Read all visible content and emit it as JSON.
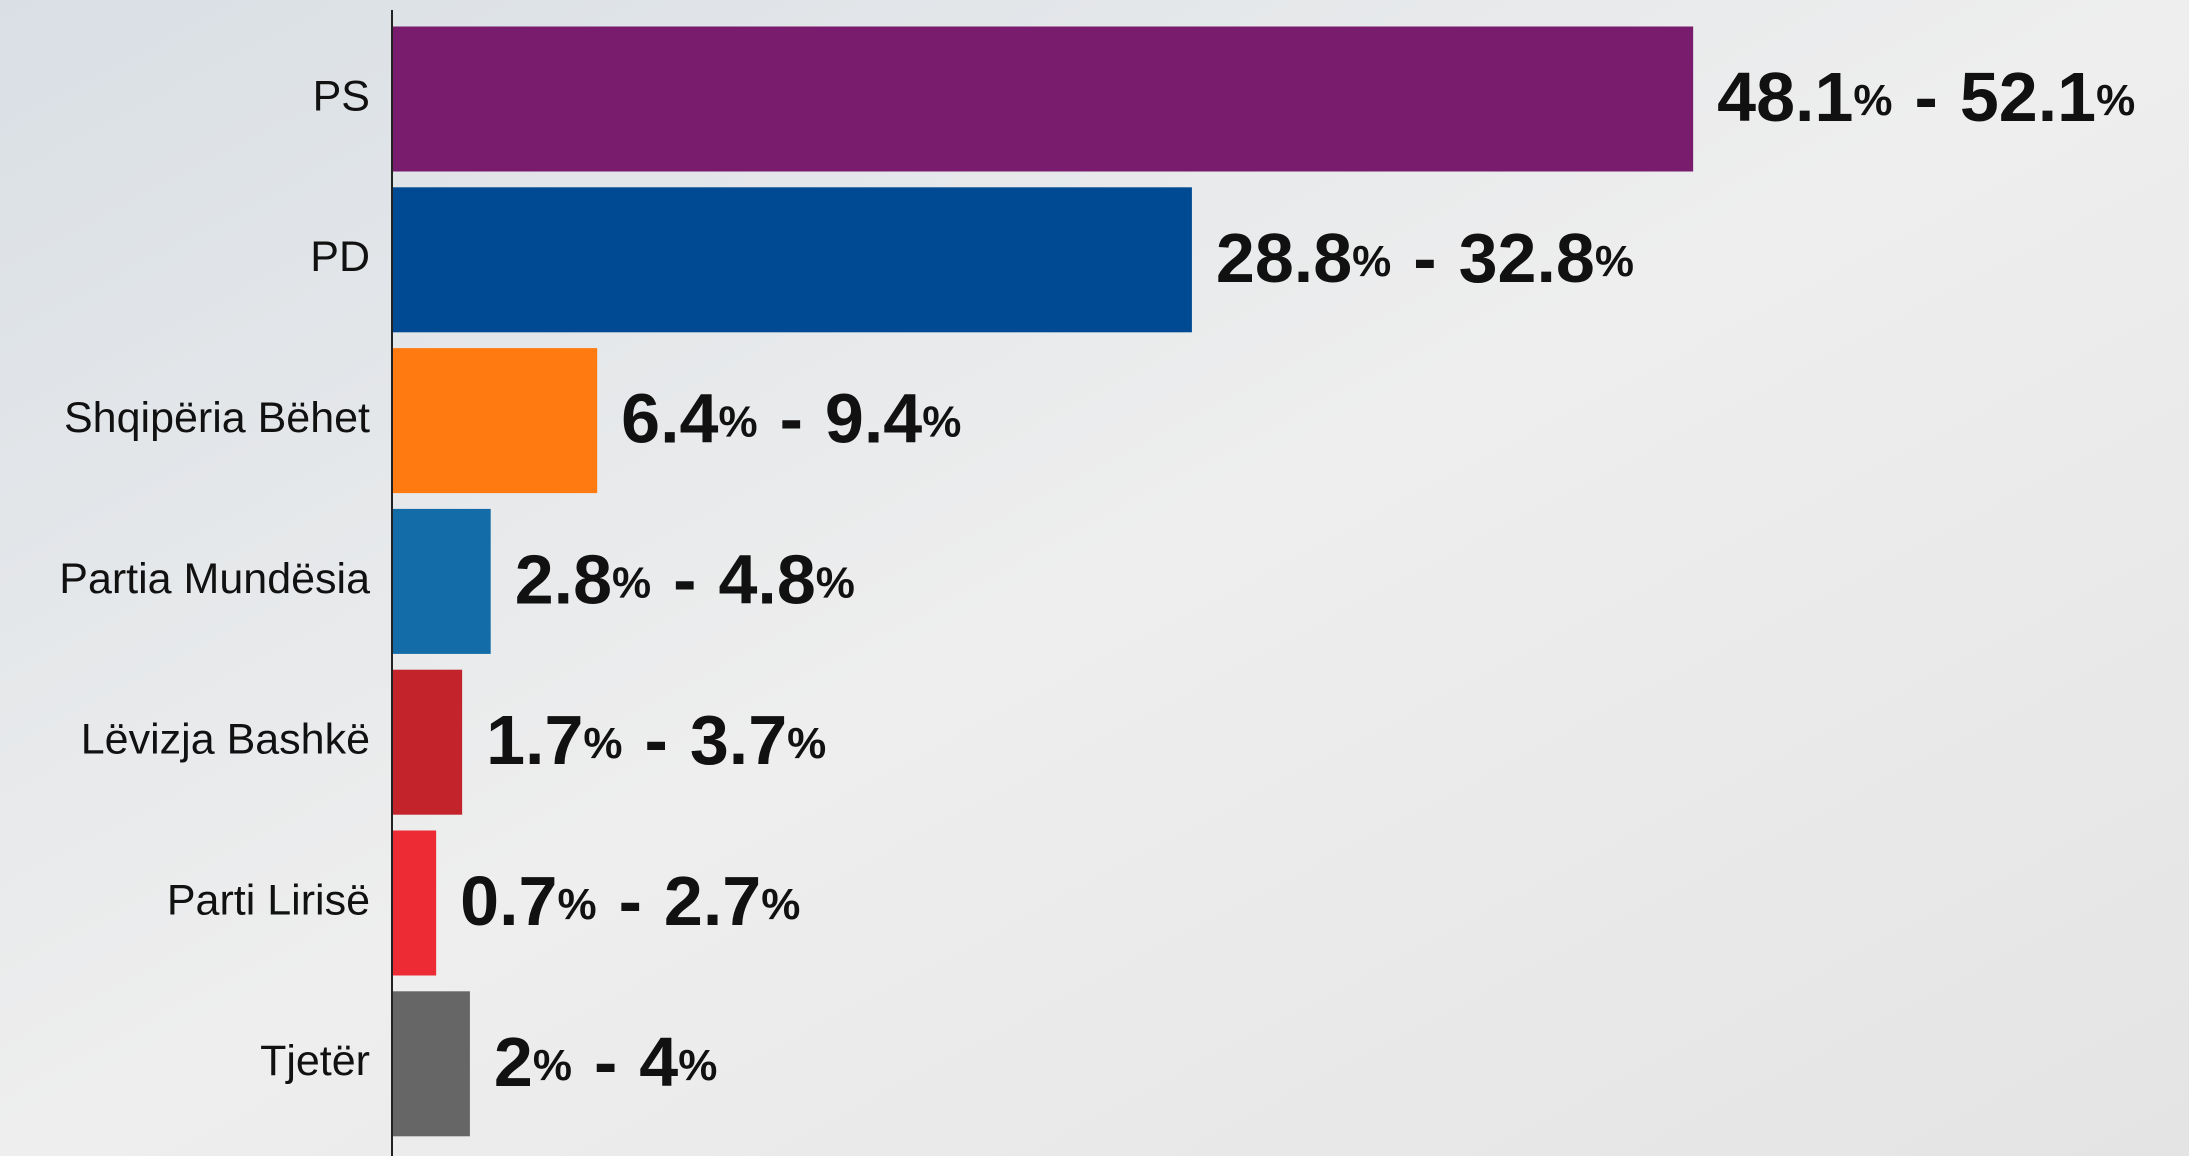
{
  "chart_data": {
    "type": "range_bar",
    "orientation": "horizontal",
    "categories": [
      "PS",
      "PD",
      "Shqipëria Bëhet",
      "Partia Mundësia",
      "Lëvizja Bashkë",
      "Parti Lirisë",
      "Tjetër"
    ],
    "low_values": [
      48.1,
      28.8,
      6.4,
      2.8,
      1.7,
      0.7,
      2
    ],
    "high_values": [
      52.1,
      32.8,
      9.4,
      4.8,
      3.7,
      2.7,
      4
    ],
    "low_value_labels": [
      "48.1%",
      "28.8%",
      "6.4%",
      "2.8%",
      "1.7%",
      "0.7%",
      "2%"
    ],
    "high_value_labels": [
      "52.1%",
      "32.8%",
      "9.4%",
      "4.8%",
      "3.7%",
      "2.7%",
      "4%"
    ],
    "separator": "-",
    "colors": [
      "#7a1c6e",
      "#004a93",
      "#ff7a10",
      "#136ca8",
      "#c3242b",
      "#ec2b35",
      "#666666"
    ],
    "xlim": [
      0,
      69
    ]
  }
}
